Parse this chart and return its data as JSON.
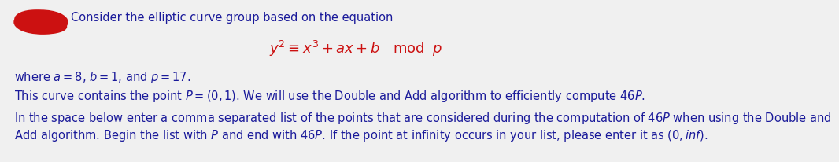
{
  "bg_color": "#f0f0f0",
  "red_blob_color": "#cc1111",
  "text_color": "#1a1a9a",
  "eq_color": "#cc1111",
  "line1_text": "Consider the elliptic curve group based on the equation",
  "line3_text": "where $a = 8$, $b = 1$, and $p = 17$.",
  "line4_text": "This curve contains the point $P = (0, 1)$. We will use the Double and Add algorithm to efficiently compute $46P$.",
  "line5a_text": "In the space below enter a comma separated list of the points that are considered during the computation of $46P$ when using the Double and",
  "line5b_text": "Add algorithm. Begin the list with $P$ and end with $46P$. If the point at infinity occurs in your list, please enter it as $(0, inf)$.",
  "fontsize": 10.5,
  "eq_fontsize": 13
}
